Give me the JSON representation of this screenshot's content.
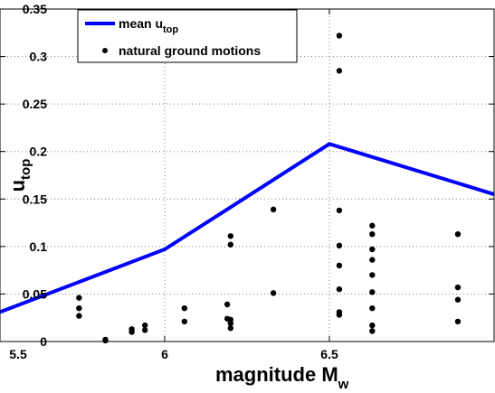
{
  "chart_data": {
    "type": "line",
    "xlabel": "magnitude M",
    "xlabel_sub": "w",
    "ylabel": "u",
    "ylabel_sub": "top",
    "xlim": [
      5.5,
      7.0
    ],
    "ylim": [
      0,
      0.35
    ],
    "grid": true,
    "grid_style": "dotted",
    "legend_position": "top-left",
    "x_ticks": [
      5.5,
      6,
      6.5
    ],
    "x_tick_labels": [
      "5.5",
      "6",
      "6.5"
    ],
    "y_ticks": [
      0,
      0.05,
      0.1,
      0.15,
      0.2,
      0.25,
      0.3,
      0.35
    ],
    "y_tick_labels": [
      "0",
      "0.05",
      "0.1",
      "0.15",
      "0.2",
      "0.25",
      "0.3",
      "0.35"
    ],
    "series": [
      {
        "name": "mean u",
        "name_sub": "top",
        "kind": "line",
        "color": "#0000ff",
        "x": [
          5.5,
          6.0,
          6.5,
          7.0
        ],
        "y": [
          0.031,
          0.097,
          0.208,
          0.155
        ]
      },
      {
        "name": "natural ground motions",
        "kind": "scatter",
        "color": "#000000",
        "points": [
          [
            5.74,
            0.046
          ],
          [
            5.74,
            0.035
          ],
          [
            5.74,
            0.027
          ],
          [
            5.82,
            0.002
          ],
          [
            5.82,
            0.001
          ],
          [
            5.9,
            0.013
          ],
          [
            5.9,
            0.01
          ],
          [
            5.94,
            0.017
          ],
          [
            5.94,
            0.012
          ],
          [
            6.06,
            0.035
          ],
          [
            6.06,
            0.021
          ],
          [
            6.19,
            0.039
          ],
          [
            6.19,
            0.024
          ],
          [
            6.2,
            0.111
          ],
          [
            6.2,
            0.102
          ],
          [
            6.2,
            0.023
          ],
          [
            6.2,
            0.019
          ],
          [
            6.2,
            0.014
          ],
          [
            6.33,
            0.139
          ],
          [
            6.33,
            0.051
          ],
          [
            6.53,
            0.322
          ],
          [
            6.53,
            0.285
          ],
          [
            6.53,
            0.138
          ],
          [
            6.53,
            0.101
          ],
          [
            6.53,
            0.08
          ],
          [
            6.53,
            0.055
          ],
          [
            6.53,
            0.031
          ],
          [
            6.53,
            0.028
          ],
          [
            6.63,
            0.122
          ],
          [
            6.63,
            0.113
          ],
          [
            6.63,
            0.097
          ],
          [
            6.63,
            0.086
          ],
          [
            6.63,
            0.07
          ],
          [
            6.63,
            0.052
          ],
          [
            6.63,
            0.035
          ],
          [
            6.63,
            0.017
          ],
          [
            6.63,
            0.011
          ],
          [
            6.89,
            0.113
          ],
          [
            6.89,
            0.057
          ],
          [
            6.89,
            0.044
          ],
          [
            6.89,
            0.021
          ]
        ]
      }
    ]
  }
}
